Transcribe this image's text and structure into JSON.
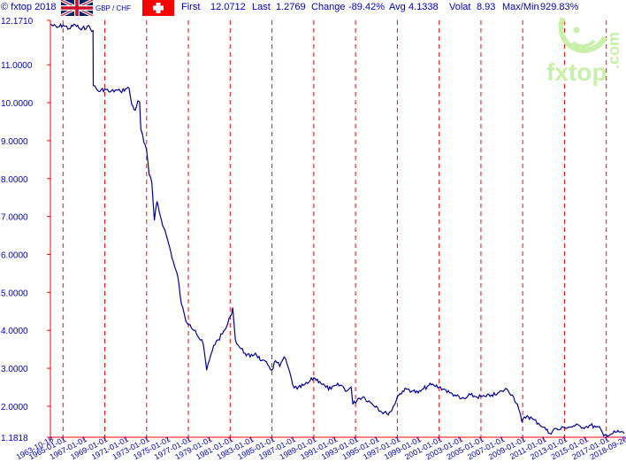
{
  "header": {
    "copyright": "© fxtop 2018",
    "pair": "GBP / CHF",
    "first_label": "First",
    "first_value": "12.0712",
    "last_label": "Last",
    "last_value": "1.2769",
    "change_label": "Change",
    "change_value": "-89.42%",
    "avg_label": "Avg",
    "avg_value": "4.1338",
    "volat_label": "Volat",
    "volat_value": "8.93",
    "maxmin_label": "Max/Min",
    "maxmin_value": "929.83%"
  },
  "watermark": {
    "text": "fxtop",
    "suffix": ".com"
  },
  "colors": {
    "line": "#00009c",
    "grid": "#ff0000",
    "text": "#0000cc",
    "watermark": "#c8f0a8"
  },
  "chart_data": {
    "type": "line",
    "title": "",
    "xlabel": "",
    "ylabel": "",
    "ylim": [
      1.1818,
      12.171
    ],
    "y_ticks": [
      "12.1710",
      "11.0000",
      "10.0000",
      "9.0000",
      "8.0000",
      "7.0000",
      "6.0000",
      "5.0000",
      "4.0000",
      "3.0000",
      "2.0000",
      "1.1818"
    ],
    "x_range": [
      "1963-10-18",
      "2018-09-20"
    ],
    "x_ticks": [
      "1963-10-18",
      "1965-01-01",
      "1967-01-01",
      "1969-01-01",
      "1971-01-01",
      "1973-01-01",
      "1975-01-01",
      "1977-01-01",
      "1979-01-01",
      "1981-01-01",
      "1983-01-01",
      "1985-01-01",
      "1987-01-01",
      "1989-01-01",
      "1991-01-01",
      "1993-01-01",
      "1995-01-01",
      "1997-01-01",
      "1999-01-01",
      "2001-01-01",
      "2003-01-01",
      "2005-01-01",
      "2007-01-01",
      "2009-01-01",
      "2011-01-01",
      "2013-01-01",
      "2015-01-01",
      "2017-01-01",
      "2018-09-20"
    ],
    "grid": true,
    "series": [
      {
        "points": [
          [
            "1963-10-18",
            12.07
          ],
          [
            "1964-06-01",
            11.98
          ],
          [
            "1965-01-01",
            12.05
          ],
          [
            "1965-08-01",
            11.95
          ],
          [
            "1966-03-01",
            12.06
          ],
          [
            "1966-10-01",
            11.92
          ],
          [
            "1967-05-01",
            12.02
          ],
          [
            "1967-11-15",
            11.9
          ],
          [
            "1967-11-25",
            10.45
          ],
          [
            "1968-06-01",
            10.3
          ],
          [
            "1969-01-01",
            10.36
          ],
          [
            "1969-07-01",
            10.28
          ],
          [
            "1970-01-01",
            10.33
          ],
          [
            "1970-07-01",
            10.3
          ],
          [
            "1971-01-01",
            10.37
          ],
          [
            "1971-05-01",
            10.38
          ],
          [
            "1971-08-01",
            9.95
          ],
          [
            "1971-12-01",
            9.8
          ],
          [
            "1972-03-01",
            10.05
          ],
          [
            "1972-05-01",
            10.02
          ],
          [
            "1972-06-15",
            9.3
          ],
          [
            "1972-10-01",
            8.95
          ],
          [
            "1973-01-01",
            8.75
          ],
          [
            "1973-04-01",
            8.1
          ],
          [
            "1973-07-01",
            7.9
          ],
          [
            "1973-10-01",
            6.9
          ],
          [
            "1974-01-01",
            7.4
          ],
          [
            "1974-05-01",
            7.0
          ],
          [
            "1974-09-01",
            6.7
          ],
          [
            "1975-01-01",
            6.4
          ],
          [
            "1975-05-01",
            6.05
          ],
          [
            "1975-09-01",
            5.7
          ],
          [
            "1976-01-01",
            5.4
          ],
          [
            "1976-05-01",
            4.7
          ],
          [
            "1976-10-01",
            4.25
          ],
          [
            "1977-03-01",
            4.15
          ],
          [
            "1977-09-01",
            4.0
          ],
          [
            "1978-01-01",
            3.8
          ],
          [
            "1978-06-01",
            3.65
          ],
          [
            "1978-10-01",
            2.95
          ],
          [
            "1979-01-01",
            3.2
          ],
          [
            "1979-06-01",
            3.6
          ],
          [
            "1979-11-01",
            3.75
          ],
          [
            "1980-04-01",
            3.9
          ],
          [
            "1980-09-01",
            4.1
          ],
          [
            "1981-01-01",
            4.35
          ],
          [
            "1981-04-01",
            4.6
          ],
          [
            "1981-07-01",
            3.75
          ],
          [
            "1981-12-01",
            3.55
          ],
          [
            "1982-06-01",
            3.4
          ],
          [
            "1982-12-01",
            3.3
          ],
          [
            "1983-06-01",
            3.4
          ],
          [
            "1984-01-01",
            3.2
          ],
          [
            "1984-08-01",
            3.1
          ],
          [
            "1985-01-01",
            2.95
          ],
          [
            "1985-05-01",
            3.2
          ],
          [
            "1985-10-01",
            3.05
          ],
          [
            "1986-03-01",
            3.3
          ],
          [
            "1986-08-01",
            3.0
          ],
          [
            "1987-01-01",
            2.55
          ],
          [
            "1987-06-01",
            2.45
          ],
          [
            "1988-01-01",
            2.55
          ],
          [
            "1988-06-01",
            2.6
          ],
          [
            "1989-01-01",
            2.75
          ],
          [
            "1989-08-01",
            2.65
          ],
          [
            "1990-03-01",
            2.5
          ],
          [
            "1990-09-01",
            2.45
          ],
          [
            "1991-03-01",
            2.55
          ],
          [
            "1991-09-01",
            2.55
          ],
          [
            "1992-03-01",
            2.4
          ],
          [
            "1992-08-01",
            2.5
          ],
          [
            "1992-10-01",
            2.05
          ],
          [
            "1993-04-01",
            2.2
          ],
          [
            "1993-10-01",
            2.25
          ],
          [
            "1994-06-01",
            2.1
          ],
          [
            "1995-01-01",
            2.0
          ],
          [
            "1995-07-01",
            1.85
          ],
          [
            "1996-01-01",
            1.8
          ],
          [
            "1996-07-01",
            1.9
          ],
          [
            "1997-01-01",
            2.25
          ],
          [
            "1997-07-01",
            2.4
          ],
          [
            "1998-01-01",
            2.45
          ],
          [
            "1998-07-01",
            2.4
          ],
          [
            "1999-01-01",
            2.35
          ],
          [
            "1999-07-01",
            2.45
          ],
          [
            "2000-01-01",
            2.55
          ],
          [
            "2000-07-01",
            2.55
          ],
          [
            "2001-01-01",
            2.5
          ],
          [
            "2001-07-01",
            2.45
          ],
          [
            "2002-01-01",
            2.35
          ],
          [
            "2002-07-01",
            2.3
          ],
          [
            "2003-01-01",
            2.2
          ],
          [
            "2003-07-01",
            2.2
          ],
          [
            "2004-01-01",
            2.3
          ],
          [
            "2004-07-01",
            2.25
          ],
          [
            "2005-01-01",
            2.25
          ],
          [
            "2005-07-01",
            2.25
          ],
          [
            "2006-01-01",
            2.3
          ],
          [
            "2006-07-01",
            2.3
          ],
          [
            "2007-01-01",
            2.4
          ],
          [
            "2007-07-01",
            2.45
          ],
          [
            "2008-01-01",
            2.3
          ],
          [
            "2008-07-01",
            2.05
          ],
          [
            "2008-12-01",
            1.6
          ],
          [
            "2009-06-01",
            1.75
          ],
          [
            "2010-01-01",
            1.65
          ],
          [
            "2010-07-01",
            1.55
          ],
          [
            "2011-01-01",
            1.45
          ],
          [
            "2011-08-01",
            1.28
          ],
          [
            "2012-01-01",
            1.4
          ],
          [
            "2012-07-01",
            1.38
          ],
          [
            "2013-01-01",
            1.45
          ],
          [
            "2013-07-01",
            1.45
          ],
          [
            "2014-01-01",
            1.48
          ],
          [
            "2014-07-01",
            1.48
          ],
          [
            "2015-01-01",
            1.45
          ],
          [
            "2015-07-01",
            1.5
          ],
          [
            "2016-01-01",
            1.45
          ],
          [
            "2016-06-15",
            1.4
          ],
          [
            "2016-10-01",
            1.22
          ],
          [
            "2017-01-01",
            1.25
          ],
          [
            "2017-07-01",
            1.27
          ],
          [
            "2018-01-01",
            1.32
          ],
          [
            "2018-05-01",
            1.32
          ],
          [
            "2018-09-20",
            1.28
          ]
        ]
      }
    ]
  }
}
